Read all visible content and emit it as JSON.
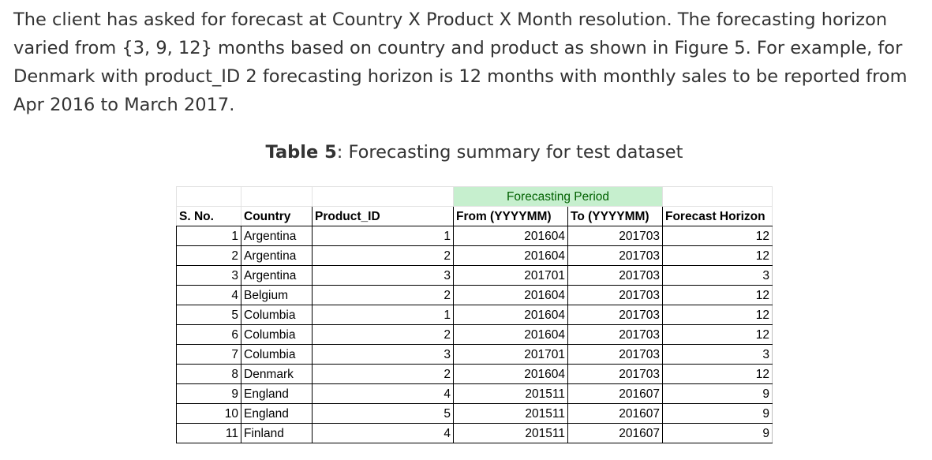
{
  "paragraph": "The client has asked for forecast at Country X Product X Month resolution. The forecasting horizon varied from {3, 9, 12} months based on country and product as shown in Figure 5. For example, for Denmark with product_ID 2 forecasting horizon is 12 months with monthly sales to be reported from Apr 2016 to March 2017.",
  "caption": {
    "label": "Table 5",
    "text": ": Forecasting summary for test dataset"
  },
  "table": {
    "group_header": "Forecasting Period",
    "columns": [
      "S. No.",
      "Country",
      "Product_ID",
      "From (YYYYMM)",
      "To (YYYYMM)",
      "Forecast Horizon"
    ],
    "rows": [
      [
        "1",
        "Argentina",
        "1",
        "201604",
        "201703",
        "12"
      ],
      [
        "2",
        "Argentina",
        "2",
        "201604",
        "201703",
        "12"
      ],
      [
        "3",
        "Argentina",
        "3",
        "201701",
        "201703",
        "3"
      ],
      [
        "4",
        "Belgium",
        "2",
        "201604",
        "201703",
        "12"
      ],
      [
        "5",
        "Columbia",
        "1",
        "201604",
        "201703",
        "12"
      ],
      [
        "6",
        "Columbia",
        "2",
        "201604",
        "201703",
        "12"
      ],
      [
        "7",
        "Columbia",
        "3",
        "201701",
        "201703",
        "3"
      ],
      [
        "8",
        "Denmark",
        "2",
        "201604",
        "201703",
        "12"
      ],
      [
        "9",
        "England",
        "4",
        "201511",
        "201607",
        "9"
      ],
      [
        "10",
        "England",
        "5",
        "201511",
        "201607",
        "9"
      ],
      [
        "11",
        "Finland",
        "4",
        "201511",
        "201607",
        "9"
      ]
    ]
  },
  "colors": {
    "text": "#333333",
    "group_header_bg": "#c6efce",
    "group_header_text": "#006100"
  }
}
